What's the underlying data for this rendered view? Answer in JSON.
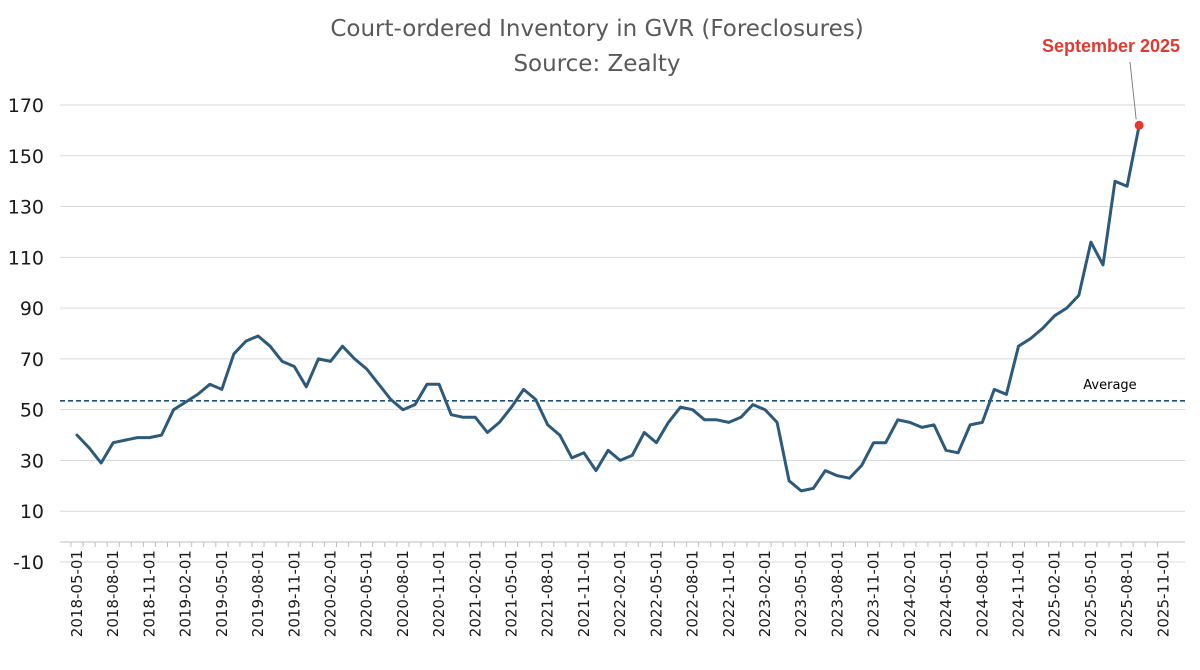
{
  "chart_data": {
    "type": "line",
    "title": "Court-ordered Inventory in GVR (Foreclosures)",
    "subtitle": "Source: Zealty",
    "xlabel": "",
    "ylabel": "",
    "ylim": [
      -10,
      170
    ],
    "yticks": [
      -10,
      10,
      30,
      50,
      70,
      90,
      110,
      130,
      150,
      170
    ],
    "grid": true,
    "xtick_labels": [
      "2018-05-01",
      "2018-08-01",
      "2018-11-01",
      "2019-02-01",
      "2019-05-01",
      "2019-08-01",
      "2019-11-01",
      "2020-02-01",
      "2020-05-01",
      "2020-08-01",
      "2020-11-01",
      "2021-02-01",
      "2021-05-01",
      "2021-08-01",
      "2021-11-01",
      "2022-02-01",
      "2022-05-01",
      "2022-08-01",
      "2022-11-01",
      "2023-02-01",
      "2023-05-01",
      "2023-08-01",
      "2023-11-01",
      "2024-02-01",
      "2024-05-01",
      "2024-08-01",
      "2024-11-01",
      "2025-02-01",
      "2025-05-01",
      "2025-08-01",
      "2025-11-01"
    ],
    "series": [
      {
        "name": "Court-ordered Inventory",
        "color": "#2d5a7b",
        "start": "2018-05",
        "values": [
          40,
          35,
          29,
          37,
          38,
          39,
          39,
          40,
          50,
          53,
          56,
          60,
          58,
          72,
          77,
          79,
          75,
          69,
          67,
          59,
          70,
          69,
          75,
          70,
          66,
          60,
          54,
          50,
          52,
          60,
          60,
          48,
          47,
          47,
          41,
          45,
          51,
          58,
          54,
          44,
          40,
          31,
          33,
          26,
          34,
          30,
          32,
          41,
          37,
          45,
          51,
          50,
          46,
          46,
          45,
          47,
          52,
          50,
          45,
          22,
          18,
          19,
          26,
          24,
          23,
          28,
          37,
          37,
          46,
          45,
          43,
          44,
          34,
          33,
          44,
          45,
          58,
          56,
          75,
          78,
          82,
          87,
          90,
          95,
          116,
          107,
          140,
          138,
          162
        ]
      }
    ],
    "reference_line": {
      "label": "Average",
      "value": 53.5,
      "color": "#1f4e79"
    },
    "annotation": {
      "text": "September 2025",
      "point_index": 88,
      "value": 162,
      "color": "#e03a31"
    }
  }
}
